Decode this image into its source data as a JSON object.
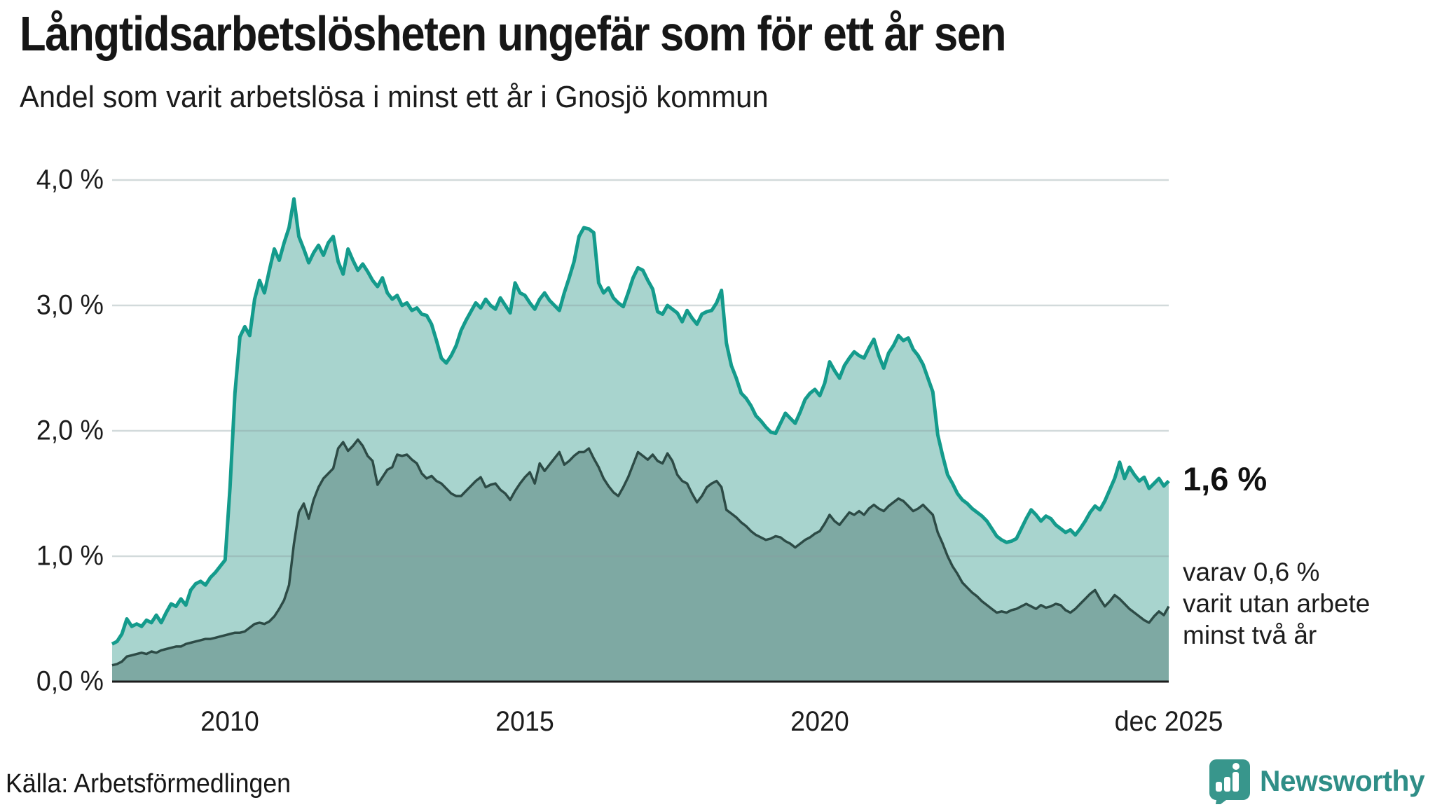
{
  "header": {
    "title": "Långtidsarbetslösheten ungefär som för ett år sen",
    "subtitle": "Andel som varit arbetslösa i minst ett år i Gnosjö kommun"
  },
  "chart_data": {
    "type": "area",
    "unit": "%",
    "frequency": "monthly",
    "start_year": 2008,
    "end_label_x": "dec 2025",
    "ylim": [
      0,
      4
    ],
    "grid": true,
    "y_ticks": [
      {
        "label": "4,0 %",
        "value": 4
      },
      {
        "label": "3,0 %",
        "value": 3
      },
      {
        "label": "2,0 %",
        "value": 2
      },
      {
        "label": "1,0 %",
        "value": 1
      },
      {
        "label": "0,0 %",
        "value": 0
      }
    ],
    "x_ticks": [
      {
        "label": "2010",
        "year": 2010.0
      },
      {
        "label": "2015",
        "year": 2015.0
      },
      {
        "label": "2020",
        "year": 2020.0
      },
      {
        "label": "dec 2025",
        "year": 2025.92
      }
    ],
    "series": [
      {
        "name": "Andel som varit arbetslösa i minst ett år",
        "current_value_label": "1,6 %",
        "values": [
          0.3,
          0.32,
          0.38,
          0.5,
          0.44,
          0.46,
          0.44,
          0.49,
          0.47,
          0.53,
          0.47,
          0.55,
          0.62,
          0.6,
          0.66,
          0.61,
          0.73,
          0.78,
          0.8,
          0.77,
          0.83,
          0.87,
          0.92,
          0.97,
          1.55,
          2.3,
          2.75,
          2.83,
          2.76,
          3.05,
          3.2,
          3.1,
          3.28,
          3.45,
          3.36,
          3.5,
          3.62,
          3.85,
          3.55,
          3.45,
          3.34,
          3.42,
          3.48,
          3.4,
          3.5,
          3.55,
          3.35,
          3.25,
          3.45,
          3.36,
          3.28,
          3.33,
          3.27,
          3.2,
          3.15,
          3.22,
          3.1,
          3.05,
          3.08,
          3.0,
          3.02,
          2.96,
          2.98,
          2.93,
          2.92,
          2.85,
          2.72,
          2.58,
          2.54,
          2.6,
          2.68,
          2.8,
          2.88,
          2.95,
          3.02,
          2.98,
          3.05,
          3.0,
          2.97,
          3.06,
          3.0,
          2.94,
          3.18,
          3.1,
          3.08,
          3.02,
          2.97,
          3.05,
          3.1,
          3.04,
          3.0,
          2.96,
          3.1,
          3.22,
          3.35,
          3.55,
          3.62,
          3.61,
          3.58,
          3.18,
          3.1,
          3.14,
          3.06,
          3.02,
          2.99,
          3.1,
          3.22,
          3.3,
          3.28,
          3.2,
          3.13,
          2.95,
          2.93,
          3.0,
          2.97,
          2.94,
          2.87,
          2.96,
          2.9,
          2.85,
          2.93,
          2.95,
          2.96,
          3.02,
          3.12,
          2.7,
          2.52,
          2.42,
          2.3,
          2.26,
          2.2,
          2.12,
          2.08,
          2.03,
          1.99,
          1.98,
          2.06,
          2.14,
          2.1,
          2.06,
          2.15,
          2.25,
          2.3,
          2.33,
          2.28,
          2.38,
          2.55,
          2.48,
          2.42,
          2.52,
          2.58,
          2.63,
          2.6,
          2.58,
          2.66,
          2.73,
          2.6,
          2.5,
          2.62,
          2.68,
          2.76,
          2.72,
          2.74,
          2.65,
          2.6,
          2.53,
          2.42,
          2.31,
          1.97,
          1.8,
          1.65,
          1.58,
          1.5,
          1.45,
          1.42,
          1.38,
          1.35,
          1.32,
          1.28,
          1.22,
          1.16,
          1.13,
          1.11,
          1.12,
          1.14,
          1.22,
          1.3,
          1.37,
          1.33,
          1.28,
          1.32,
          1.3,
          1.25,
          1.22,
          1.19,
          1.21,
          1.17,
          1.22,
          1.28,
          1.35,
          1.4,
          1.37,
          1.44,
          1.53,
          1.62,
          1.75,
          1.62,
          1.71,
          1.65,
          1.6,
          1.63,
          1.54,
          1.58,
          1.62,
          1.56,
          1.6
        ]
      },
      {
        "name": "varav utan arbete minst två år",
        "current_value_label": "0,6 %",
        "values": [
          0.13,
          0.14,
          0.16,
          0.2,
          0.21,
          0.22,
          0.23,
          0.22,
          0.24,
          0.23,
          0.25,
          0.26,
          0.27,
          0.28,
          0.28,
          0.3,
          0.31,
          0.32,
          0.33,
          0.34,
          0.34,
          0.35,
          0.36,
          0.37,
          0.38,
          0.39,
          0.39,
          0.4,
          0.43,
          0.46,
          0.47,
          0.46,
          0.48,
          0.52,
          0.58,
          0.65,
          0.77,
          1.1,
          1.35,
          1.42,
          1.3,
          1.45,
          1.55,
          1.62,
          1.66,
          1.7,
          1.86,
          1.91,
          1.84,
          1.88,
          1.93,
          1.88,
          1.8,
          1.76,
          1.57,
          1.63,
          1.69,
          1.71,
          1.81,
          1.8,
          1.81,
          1.77,
          1.74,
          1.66,
          1.62,
          1.64,
          1.6,
          1.58,
          1.54,
          1.5,
          1.48,
          1.48,
          1.52,
          1.56,
          1.6,
          1.63,
          1.55,
          1.57,
          1.58,
          1.53,
          1.5,
          1.45,
          1.52,
          1.58,
          1.63,
          1.67,
          1.58,
          1.74,
          1.68,
          1.73,
          1.78,
          1.83,
          1.73,
          1.76,
          1.8,
          1.83,
          1.83,
          1.86,
          1.78,
          1.71,
          1.62,
          1.56,
          1.51,
          1.48,
          1.55,
          1.63,
          1.73,
          1.83,
          1.8,
          1.77,
          1.81,
          1.76,
          1.74,
          1.82,
          1.76,
          1.65,
          1.6,
          1.58,
          1.5,
          1.43,
          1.48,
          1.55,
          1.58,
          1.6,
          1.55,
          1.37,
          1.34,
          1.31,
          1.27,
          1.24,
          1.2,
          1.17,
          1.15,
          1.13,
          1.14,
          1.16,
          1.15,
          1.12,
          1.1,
          1.07,
          1.1,
          1.13,
          1.15,
          1.18,
          1.2,
          1.26,
          1.33,
          1.28,
          1.25,
          1.3,
          1.35,
          1.33,
          1.36,
          1.33,
          1.38,
          1.41,
          1.38,
          1.36,
          1.4,
          1.43,
          1.46,
          1.44,
          1.4,
          1.36,
          1.38,
          1.41,
          1.37,
          1.33,
          1.19,
          1.1,
          1.0,
          0.92,
          0.86,
          0.79,
          0.75,
          0.71,
          0.68,
          0.64,
          0.61,
          0.58,
          0.55,
          0.56,
          0.55,
          0.57,
          0.58,
          0.6,
          0.62,
          0.6,
          0.58,
          0.61,
          0.59,
          0.6,
          0.62,
          0.61,
          0.57,
          0.55,
          0.58,
          0.62,
          0.66,
          0.7,
          0.73,
          0.66,
          0.6,
          0.64,
          0.69,
          0.66,
          0.62,
          0.58,
          0.55,
          0.52,
          0.49,
          0.47,
          0.52,
          0.56,
          0.53,
          0.6
        ]
      }
    ],
    "annotations": {
      "primary": "1,6 %",
      "secondary_lines": [
        "varav 0,6 %",
        "varit utan arbete",
        "minst två år"
      ]
    }
  },
  "colors": {
    "series1_line": "#149b8c",
    "series1_fill": "#a8d4ce",
    "series2_line": "#2d4b46",
    "series2_fill": "#7ea9a3",
    "gridline": "rgba(138,158,161,0.38)",
    "axis_line": "#1c1c1c",
    "brand_teal": "#2f8e87",
    "logo_bg": "#38968c"
  },
  "footer": {
    "source": "Källa: Arbetsförmedlingen",
    "brand": "Newsworthy"
  }
}
